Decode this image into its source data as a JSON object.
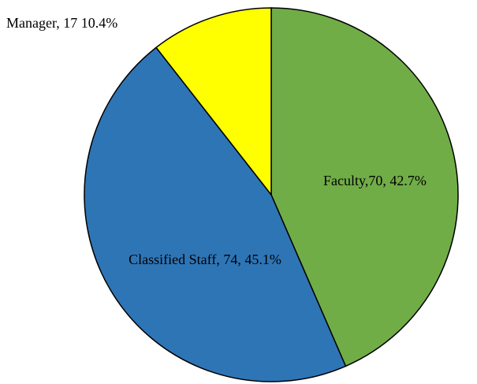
{
  "chart_data": {
    "type": "pie",
    "categories": [
      "Faculty",
      "Classified Staff",
      "Manager"
    ],
    "values": [
      70,
      74,
      17
    ],
    "value_labels": [
      "Faculty,70, 42.7%",
      "Classified Staff, 74, 45.1%",
      "Manager, 17 10.4%"
    ],
    "colors": [
      "#70ad47",
      "#2e75b6",
      "#ffff00"
    ],
    "start_angle": 0,
    "direction": "clockwise"
  }
}
